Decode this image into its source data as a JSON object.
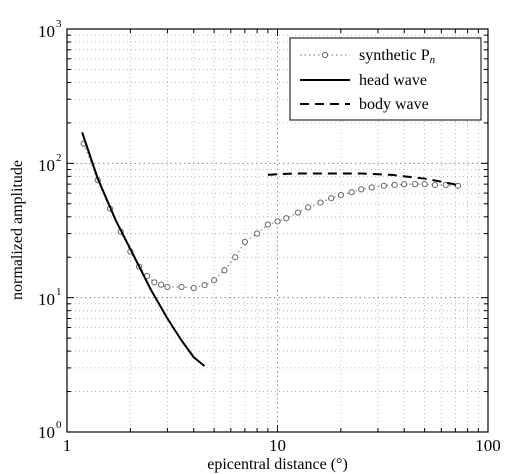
{
  "chart_data": {
    "type": "line",
    "title": "",
    "xlabel": "epicentral distance (°)",
    "ylabel": "normalized amplitude",
    "xscale": "log",
    "yscale": "log",
    "xlim": [
      1,
      100
    ],
    "ylim": [
      1,
      1000
    ],
    "x_ticks": [
      {
        "value": 1,
        "label": "1"
      },
      {
        "value": 10,
        "label": "10"
      },
      {
        "value": 100,
        "label": "100"
      }
    ],
    "y_ticks": [
      {
        "value": 1,
        "base": "10",
        "exp": "0"
      },
      {
        "value": 10,
        "base": "10",
        "exp": "1"
      },
      {
        "value": 100,
        "base": "10",
        "exp": "2"
      },
      {
        "value": 1000,
        "base": "10",
        "exp": "3"
      }
    ],
    "grid": true,
    "legend_position": "top-right",
    "series": [
      {
        "name": "synthetic P",
        "name_subscript": "n",
        "style": "dotted-circles",
        "color": "#888888",
        "x": [
          1.2,
          1.4,
          1.6,
          1.8,
          2.0,
          2.2,
          2.4,
          2.6,
          2.8,
          3.0,
          3.5,
          4.0,
          4.5,
          5.0,
          5.6,
          6.3,
          7.0,
          8.0,
          9.0,
          10.0,
          11.0,
          12.5,
          14.0,
          16.0,
          18.0,
          20.0,
          22.5,
          25.0,
          28.0,
          32.0,
          36.0,
          40.0,
          45.0,
          50.0,
          56.0,
          63.0,
          72.0
        ],
        "y": [
          140,
          75,
          46,
          31,
          22,
          17,
          14.5,
          13,
          12.5,
          12,
          12,
          11.8,
          12.4,
          13.5,
          16,
          20,
          26,
          30,
          35,
          37,
          39,
          43,
          47,
          51,
          55,
          58,
          61,
          64,
          66,
          68,
          69,
          70,
          70,
          70,
          69,
          69,
          68
        ]
      },
      {
        "name": "head wave",
        "style": "solid",
        "color": "#000000",
        "x": [
          1.18,
          1.4,
          1.7,
          2.0,
          2.5,
          3.0,
          3.5,
          4.0,
          4.5
        ],
        "y": [
          170,
          77,
          38,
          23,
          11.5,
          7.0,
          4.8,
          3.6,
          3.1
        ]
      },
      {
        "name": "body wave",
        "style": "dashed",
        "color": "#000000",
        "x": [
          9,
          10,
          12,
          15,
          20,
          25,
          30,
          35,
          40,
          50,
          60,
          72
        ],
        "y": [
          82,
          83,
          84,
          84,
          84,
          84,
          83,
          82,
          80,
          77,
          73,
          69
        ]
      }
    ]
  }
}
